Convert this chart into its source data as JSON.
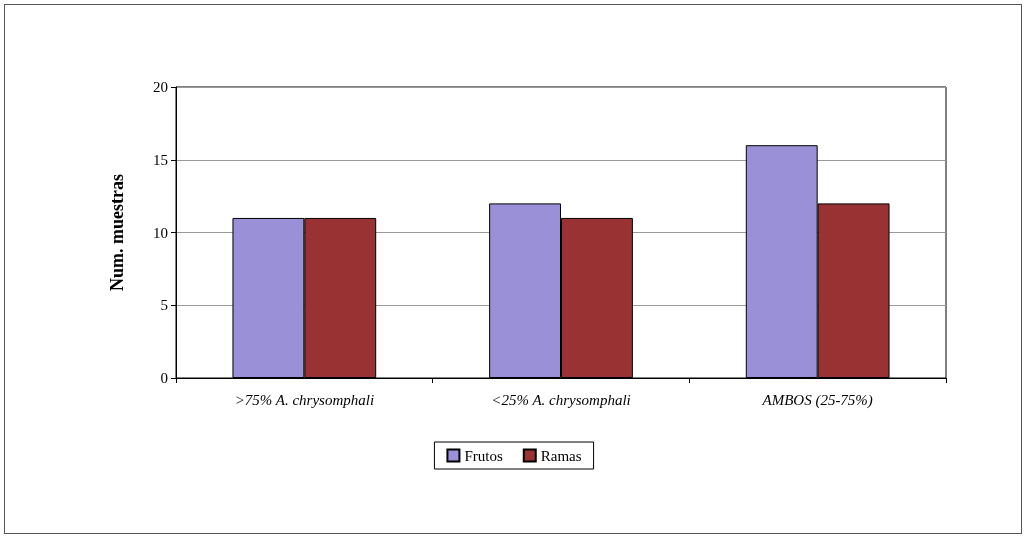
{
  "chart_data": {
    "type": "bar",
    "ylabel": "Num. muestras",
    "categories": [
      ">75% A. chrysomphali",
      "<25% A. chrysomphali",
      "AMBOS (25-75%)"
    ],
    "series": [
      {
        "name": "Frutos",
        "color": "#9990d8",
        "values": [
          11,
          12,
          16
        ]
      },
      {
        "name": "Ramas",
        "color": "#993333",
        "values": [
          11,
          11,
          12
        ]
      }
    ],
    "ylim": [
      0,
      20
    ],
    "yticks": [
      0,
      5,
      10,
      15,
      20
    ],
    "grid": "y",
    "legend": "bottom"
  }
}
